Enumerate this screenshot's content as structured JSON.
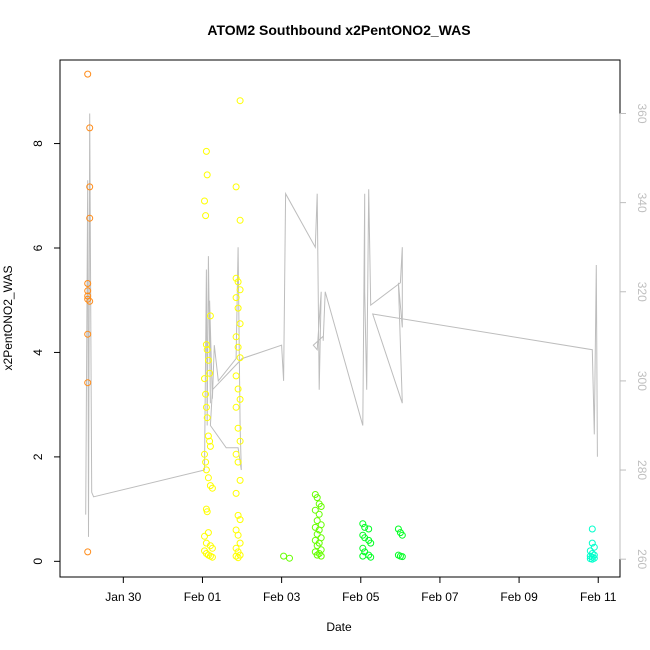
{
  "chart_data": {
    "type": "scatter",
    "title": "ATOM2 Southbound x2PentONO2_WAS",
    "xlabel": "Date",
    "ylabel": "x2PentONO2_WAS",
    "x_ticks": [
      "Jan 30",
      "Feb 01",
      "Feb 03",
      "Feb 05",
      "Feb 07",
      "Feb 09",
      "Feb 11"
    ],
    "x_tick_days": [
      30,
      32,
      34,
      36,
      38,
      40,
      42
    ],
    "xlim_days": [
      28.4,
      42.55
    ],
    "y_ticks": [
      "0",
      "2",
      "4",
      "6",
      "8"
    ],
    "ylim": [
      -0.3,
      9.6
    ],
    "y2_ticks": [
      "260",
      "280",
      "300",
      "320",
      "340",
      "360"
    ],
    "y2lim": [
      256,
      372
    ],
    "grid": false,
    "legend": "none",
    "colors": {
      "points_early": "#ff8c1a",
      "points_feb01": "#ffff00",
      "points_feb04": "#66ff00",
      "points_feb05": "#00ff22",
      "points_feb11": "#00ffcc",
      "secondary_line": "#bdbdbd",
      "axis": "#000000",
      "right_axis": "#bdbdbd"
    },
    "series": [
      {
        "color": "#ff8c1a",
        "points": [
          [
            29.1,
            9.33
          ],
          [
            29.1,
            5.32
          ],
          [
            29.1,
            5.18
          ],
          [
            29.1,
            5.08
          ],
          [
            29.1,
            5.02
          ],
          [
            29.1,
            4.35
          ],
          [
            29.1,
            3.42
          ],
          [
            29.1,
            0.18
          ],
          [
            29.15,
            8.3
          ],
          [
            29.15,
            7.17
          ],
          [
            29.15,
            6.57
          ],
          [
            29.15,
            4.98
          ]
        ]
      },
      {
        "color": "#ffff00",
        "points": [
          [
            32.1,
            7.85
          ],
          [
            32.12,
            7.4
          ],
          [
            32.05,
            6.9
          ],
          [
            32.08,
            6.62
          ],
          [
            32.1,
            4.15
          ],
          [
            32.12,
            4.05
          ],
          [
            32.15,
            3.85
          ],
          [
            32.18,
            3.6
          ],
          [
            32.2,
            4.7
          ],
          [
            32.05,
            3.5
          ],
          [
            32.08,
            3.2
          ],
          [
            32.1,
            2.95
          ],
          [
            32.12,
            2.75
          ],
          [
            32.15,
            2.4
          ],
          [
            32.18,
            2.3
          ],
          [
            32.2,
            2.2
          ],
          [
            32.05,
            2.05
          ],
          [
            32.08,
            1.9
          ],
          [
            32.1,
            1.75
          ],
          [
            32.15,
            1.6
          ],
          [
            32.2,
            1.45
          ],
          [
            32.25,
            1.4
          ],
          [
            32.1,
            1.0
          ],
          [
            32.12,
            0.95
          ],
          [
            32.15,
            0.55
          ],
          [
            32.05,
            0.48
          ],
          [
            32.1,
            0.35
          ],
          [
            32.2,
            0.3
          ],
          [
            32.25,
            0.25
          ],
          [
            32.05,
            0.2
          ],
          [
            32.1,
            0.15
          ],
          [
            32.15,
            0.12
          ],
          [
            32.2,
            0.1
          ],
          [
            32.25,
            0.08
          ],
          [
            32.95,
            8.82
          ],
          [
            32.85,
            7.17
          ],
          [
            32.95,
            6.53
          ],
          [
            32.85,
            5.42
          ],
          [
            32.9,
            5.35
          ],
          [
            32.95,
            5.2
          ],
          [
            32.85,
            5.05
          ],
          [
            32.9,
            4.85
          ],
          [
            32.95,
            4.55
          ],
          [
            32.85,
            4.3
          ],
          [
            32.9,
            4.1
          ],
          [
            32.95,
            3.9
          ],
          [
            32.85,
            3.55
          ],
          [
            32.9,
            3.3
          ],
          [
            32.95,
            3.1
          ],
          [
            32.85,
            2.95
          ],
          [
            32.9,
            2.55
          ],
          [
            32.95,
            2.3
          ],
          [
            32.85,
            2.05
          ],
          [
            32.9,
            1.9
          ],
          [
            32.95,
            1.55
          ],
          [
            32.85,
            1.3
          ],
          [
            32.9,
            0.88
          ],
          [
            32.95,
            0.8
          ],
          [
            32.85,
            0.6
          ],
          [
            32.9,
            0.5
          ],
          [
            32.95,
            0.35
          ],
          [
            32.85,
            0.25
          ],
          [
            32.9,
            0.18
          ],
          [
            32.95,
            0.12
          ],
          [
            32.85,
            0.1
          ],
          [
            32.9,
            0.07
          ]
        ]
      },
      {
        "color": "#66ff00",
        "points": [
          [
            34.05,
            0.1
          ],
          [
            34.2,
            0.06
          ],
          [
            34.85,
            1.28
          ],
          [
            34.9,
            1.22
          ],
          [
            34.95,
            1.1
          ],
          [
            35.0,
            1.05
          ],
          [
            34.85,
            0.98
          ],
          [
            34.95,
            0.9
          ],
          [
            34.9,
            0.78
          ],
          [
            35.0,
            0.7
          ],
          [
            34.85,
            0.65
          ],
          [
            34.95,
            0.6
          ],
          [
            34.9,
            0.52
          ],
          [
            35.0,
            0.45
          ],
          [
            34.85,
            0.4
          ],
          [
            34.95,
            0.35
          ],
          [
            34.9,
            0.3
          ],
          [
            35.0,
            0.22
          ],
          [
            34.85,
            0.18
          ],
          [
            34.95,
            0.15
          ],
          [
            34.9,
            0.12
          ],
          [
            35.0,
            0.1
          ]
        ]
      },
      {
        "color": "#00ff22",
        "points": [
          [
            36.05,
            0.72
          ],
          [
            36.1,
            0.65
          ],
          [
            36.2,
            0.62
          ],
          [
            36.05,
            0.5
          ],
          [
            36.1,
            0.45
          ],
          [
            36.2,
            0.4
          ],
          [
            36.25,
            0.35
          ],
          [
            36.05,
            0.25
          ],
          [
            36.1,
            0.18
          ],
          [
            36.2,
            0.12
          ],
          [
            36.05,
            0.1
          ],
          [
            36.25,
            0.08
          ],
          [
            36.95,
            0.62
          ],
          [
            37.0,
            0.55
          ],
          [
            37.05,
            0.5
          ],
          [
            36.95,
            0.12
          ],
          [
            37.0,
            0.1
          ],
          [
            37.05,
            0.09
          ]
        ]
      },
      {
        "color": "#00ffcc",
        "points": [
          [
            41.85,
            0.62
          ],
          [
            41.85,
            0.35
          ],
          [
            41.9,
            0.27
          ],
          [
            41.8,
            0.2
          ],
          [
            41.85,
            0.15
          ],
          [
            41.9,
            0.12
          ],
          [
            41.8,
            0.1
          ],
          [
            41.85,
            0.08
          ],
          [
            41.9,
            0.06
          ],
          [
            41.8,
            0.05
          ],
          [
            41.85,
            0.04
          ]
        ]
      }
    ],
    "secondary_series": {
      "color": "#bdbdbd",
      "axis": "right",
      "points": [
        [
          29.05,
          270
        ],
        [
          29.1,
          345
        ],
        [
          29.12,
          265
        ],
        [
          29.15,
          360
        ],
        [
          29.2,
          275
        ],
        [
          29.25,
          274
        ],
        [
          32.05,
          280
        ],
        [
          32.1,
          325
        ],
        [
          32.12,
          290
        ],
        [
          32.15,
          328
        ],
        [
          32.2,
          295
        ],
        [
          32.18,
          318
        ],
        [
          32.25,
          296
        ],
        [
          32.3,
          308
        ],
        [
          32.4,
          300
        ],
        [
          32.85,
          305
        ],
        [
          32.9,
          330
        ],
        [
          32.95,
          290
        ],
        [
          32.98,
          280
        ],
        [
          32.9,
          285
        ],
        [
          32.6,
          285
        ],
        [
          32.2,
          290
        ],
        [
          32.25,
          298
        ],
        [
          33.0,
          305
        ],
        [
          34.0,
          308
        ],
        [
          34.05,
          300
        ],
        [
          34.1,
          342
        ],
        [
          34.85,
          330
        ],
        [
          34.9,
          342
        ],
        [
          34.95,
          298
        ],
        [
          35.0,
          320
        ],
        [
          34.9,
          307
        ],
        [
          34.8,
          308
        ],
        [
          35.05,
          310
        ],
        [
          35.05,
          309
        ],
        [
          35.1,
          320
        ],
        [
          36.05,
          290
        ],
        [
          36.1,
          342
        ],
        [
          36.1,
          320
        ],
        [
          36.15,
          298
        ],
        [
          36.2,
          343
        ],
        [
          36.25,
          317
        ],
        [
          37.0,
          322
        ],
        [
          37.05,
          330
        ],
        [
          37.05,
          312
        ],
        [
          36.95,
          322
        ],
        [
          37.05,
          295
        ],
        [
          36.3,
          315
        ],
        [
          41.85,
          307
        ],
        [
          41.9,
          288
        ],
        [
          41.95,
          326
        ],
        [
          41.98,
          283
        ]
      ]
    }
  }
}
